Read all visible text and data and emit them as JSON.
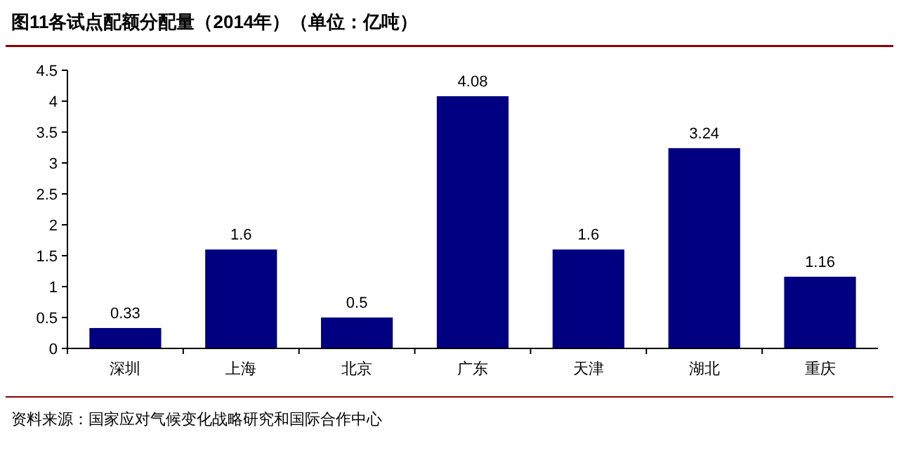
{
  "chart_data": {
    "type": "bar",
    "title": "图11各试点配额分配量（2014年）（单位：亿吨）",
    "categories": [
      "深圳",
      "上海",
      "北京",
      "广东",
      "天津",
      "湖北",
      "重庆"
    ],
    "values": [
      0.33,
      1.6,
      0.5,
      4.08,
      1.6,
      3.24,
      1.16
    ],
    "color": "#000080",
    "ylim": [
      0,
      4.5
    ],
    "yticks": [
      0,
      0.5,
      1,
      1.5,
      2,
      2.5,
      3,
      3.5,
      4,
      4.5
    ],
    "data_labels": true,
    "grid": false,
    "annotations": [
      "资料来源：国家应对气候变化战略研究和国际合作中心"
    ]
  }
}
